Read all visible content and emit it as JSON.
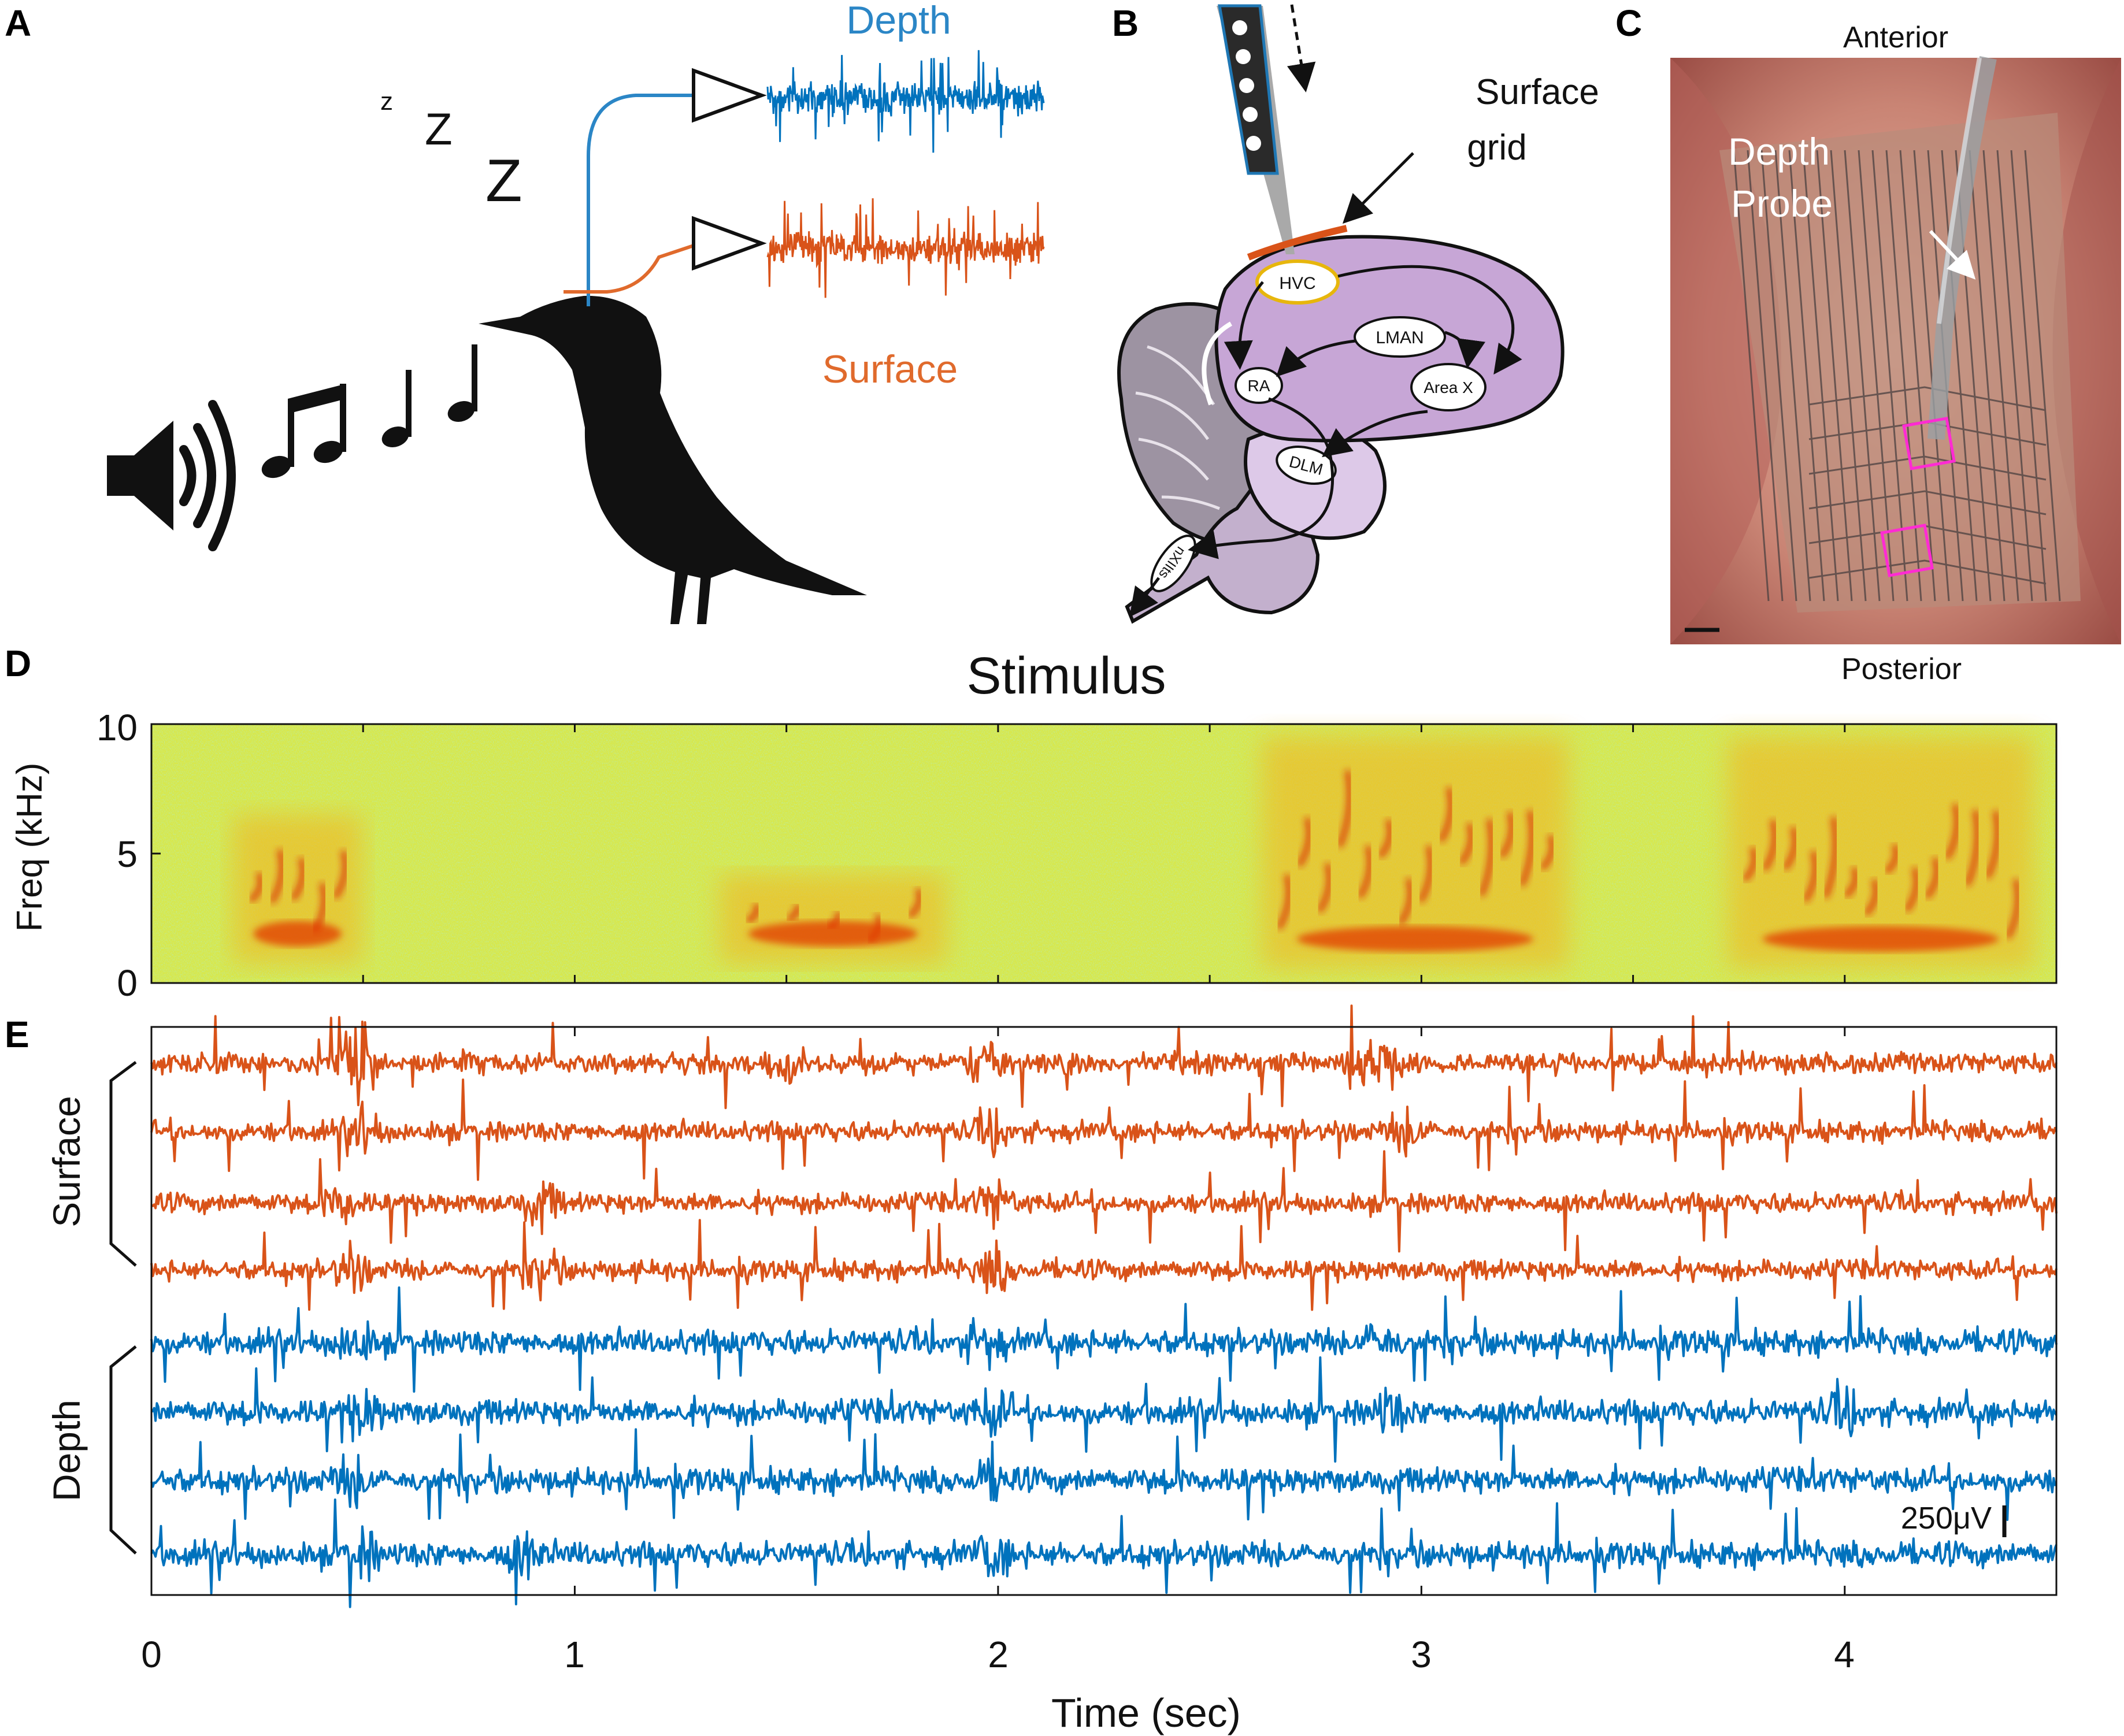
{
  "panels": {
    "A": {
      "letter": "A",
      "depth_label": "Depth",
      "surface_label": "Surface",
      "sleep_letters": [
        "z",
        "Z",
        "Z"
      ],
      "icons": [
        "speaker-icon",
        "music-notes-icon",
        "bird-silhouette-icon",
        "amplifier-icon"
      ]
    },
    "B": {
      "letter": "B",
      "surface_grid_label_line1": "Surface",
      "surface_grid_label_line2": "grid",
      "regions": [
        "HVC",
        "LMAN",
        "RA",
        "Area X",
        "DLM",
        "nXIIts"
      ]
    },
    "C": {
      "letter": "C",
      "anterior_label": "Anterior",
      "posterior_label": "Posterior",
      "probe_label_line1": "Depth",
      "probe_label_line2": "Probe"
    },
    "D": {
      "letter": "D",
      "title": "Stimulus",
      "ylabel": "Freq (kHz)",
      "yticks": [
        "0",
        "5",
        "10"
      ]
    },
    "E": {
      "letter": "E",
      "surface_group_label": "Surface",
      "depth_group_label": "Depth",
      "scale_bar_label": "250μV",
      "xticks": [
        "0",
        "1",
        "2",
        "3",
        "4"
      ],
      "xlabel": "Time (sec)"
    }
  },
  "colors": {
    "surface": "#d95319",
    "depth": "#0072bd",
    "depth_label": "#2b86c6",
    "surface_label": "#e06a2c",
    "brain_telencephalon": "#c7a6d6",
    "brain_cerebellum": "#9d93a2",
    "brain_thalamus": "#ddc9e8",
    "highlight_box": "#ff2bd3",
    "spectrogram_background": "#d8e84a",
    "spectrogram_energy": "#d91a00"
  },
  "chart_data": [
    {
      "type": "heatmap",
      "title": "Stimulus",
      "ylabel": "Freq (kHz)",
      "xlim": [
        0,
        4.5
      ],
      "ylim": [
        0,
        10
      ],
      "yticks": [
        0,
        5,
        10
      ],
      "events": [
        {
          "kind": "syllable",
          "t_start": 0.22,
          "t_end": 0.47,
          "f_low": 1.0,
          "f_high": 6.5
        },
        {
          "kind": "syllable",
          "t_start": 1.37,
          "t_end": 1.85,
          "f_low": 1.0,
          "f_high": 4.2
        },
        {
          "kind": "song_bout",
          "t_start": 2.65,
          "t_end": 3.32,
          "f_low": 0.8,
          "f_high": 9.5
        },
        {
          "kind": "song_bout",
          "t_start": 3.75,
          "t_end": 4.42,
          "f_low": 0.8,
          "f_high": 9.5
        }
      ]
    },
    {
      "type": "line",
      "xlabel": "Time (sec)",
      "xlim": [
        0,
        4.5
      ],
      "xticks": [
        0,
        1,
        2,
        3,
        4
      ],
      "scale_bar_uV": 250,
      "series": [
        {
          "group": "Surface",
          "channel": 1,
          "transients_sec": [
            0.48,
            0.5,
            1.5,
            1.97,
            2.85,
            2.92
          ]
        },
        {
          "group": "Surface",
          "channel": 2,
          "transients_sec": [
            0.5,
            1.99,
            2.97
          ]
        },
        {
          "group": "Surface",
          "channel": 3,
          "transients_sec": [
            0.45,
            0.92,
            1.99
          ]
        },
        {
          "group": "Surface",
          "channel": 4,
          "transients_sec": [
            0.47,
            0.92,
            1.99
          ]
        },
        {
          "group": "Depth",
          "channel": 1,
          "transients_sec": [
            0.48,
            1.97,
            2.9
          ]
        },
        {
          "group": "Depth",
          "channel": 2,
          "transients_sec": [
            0.5,
            1.99,
            2.92,
            4.0
          ]
        },
        {
          "group": "Depth",
          "channel": 3,
          "transients_sec": [
            0.48,
            1.99
          ]
        },
        {
          "group": "Depth",
          "channel": 4,
          "transients_sec": [
            0.5,
            0.88,
            1.99
          ]
        }
      ]
    }
  ]
}
